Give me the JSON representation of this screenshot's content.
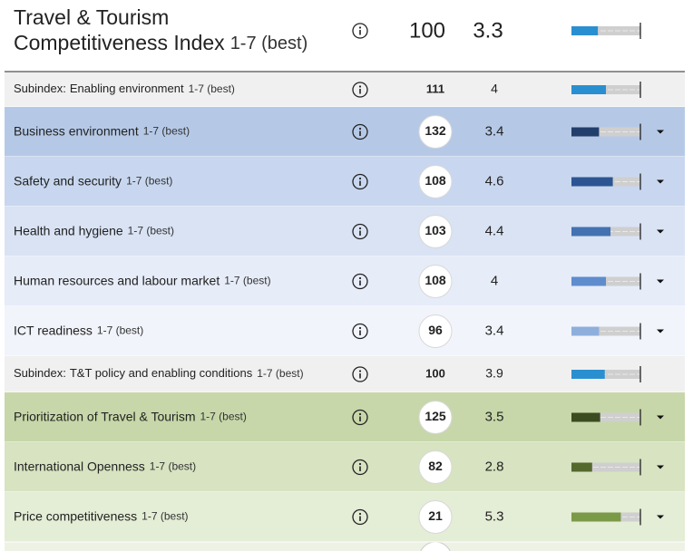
{
  "header": {
    "title": "Travel & Tourism",
    "title_line2": "Competitiveness Index",
    "unit": "1-7 (best)",
    "rank": 100,
    "score": 3.3,
    "bar_color": "#2a8fd0"
  },
  "bar_range": [
    1,
    7
  ],
  "rows": [
    {
      "kind": "subindex",
      "prefix": "Subindex:",
      "name": "Enabling environment",
      "unit": "1-7 (best)",
      "rank": 111,
      "score": 4.0,
      "bar_color": "#2a8fd0",
      "background": "#f0f0f0"
    },
    {
      "kind": "pillar",
      "name": "Business environment",
      "unit": "1-7 (best)",
      "rank": 132,
      "score": 3.4,
      "bar_color": "#223f6b",
      "text_color": "#223f6b",
      "background": "#b5c9e7"
    },
    {
      "kind": "pillar",
      "name": "Safety and security",
      "unit": "1-7 (best)",
      "rank": 108,
      "score": 4.6,
      "bar_color": "#2c5592",
      "text_color": "#2c5592",
      "background": "#c8d7ef"
    },
    {
      "kind": "pillar",
      "name": "Health and hygiene",
      "unit": "1-7 (best)",
      "rank": 103,
      "score": 4.4,
      "bar_color": "#4471b1",
      "text_color": "#3d66a3",
      "background": "#d9e3f4"
    },
    {
      "kind": "pillar",
      "name": "Human resources and labour market",
      "unit": "1-7 (best)",
      "rank": 108,
      "score": 4.0,
      "bar_color": "#5f8ccd",
      "text_color": "#4f7cbd",
      "background": "#e6ecf8"
    },
    {
      "kind": "pillar",
      "name": "ICT readiness",
      "unit": "1-7 (best)",
      "rank": 96,
      "score": 3.4,
      "bar_color": "#8eafdc",
      "text_color": "#7d9fcf",
      "background": "#f1f4fb"
    },
    {
      "kind": "subindex",
      "prefix": "Subindex:",
      "name": "T&T policy and enabling conditions",
      "unit": "1-7 (best)",
      "rank": 100,
      "score": 3.9,
      "bar_color": "#2a8fd0",
      "background": "#f0f0f0"
    },
    {
      "kind": "pillar",
      "name": "Prioritization of Travel & Tourism",
      "unit": "1-7 (best)",
      "rank": 125,
      "score": 3.5,
      "bar_color": "#3c4c21",
      "text_color": "#3c4c21",
      "background": "#c7d7a9"
    },
    {
      "kind": "pillar",
      "name": "International Openness",
      "unit": "1-7 (best)",
      "rank": 82,
      "score": 2.8,
      "bar_color": "#55692e",
      "text_color": "#55692e",
      "background": "#d7e3c1"
    },
    {
      "kind": "pillar",
      "name": "Price competitiveness",
      "unit": "1-7 (best)",
      "rank": 21,
      "score": 5.3,
      "bar_color": "#7a9a48",
      "text_color": "#6d8a3e",
      "background": "#e4edd5"
    }
  ]
}
